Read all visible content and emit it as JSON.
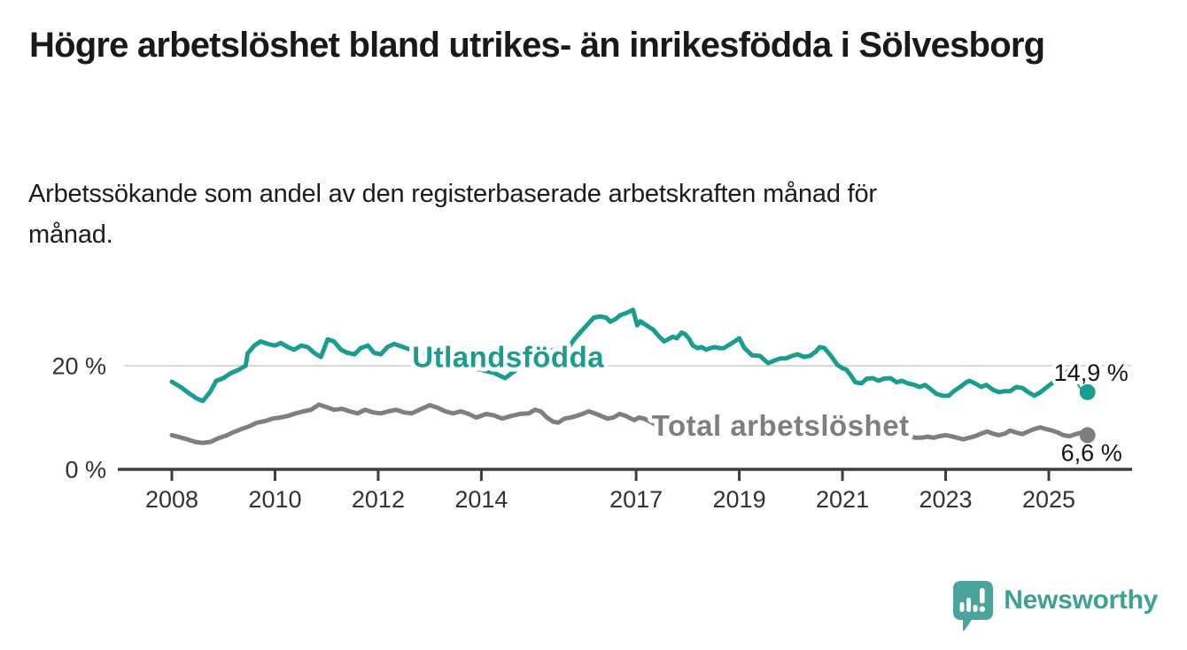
{
  "header": {
    "title": "Högre arbetslöshet bland utrikes- än inrikesfödda i Sölvesborg",
    "subtitle": "Arbetssökande som andel av den registerbaserade arbetskraften månad för månad."
  },
  "footer": {
    "brand": "Newsworthy"
  },
  "chart_data": {
    "type": "line",
    "title": "Högre arbetslöshet bland utrikes- än inrikesfödda i Sölvesborg",
    "subtitle": "Arbetssökande som andel av den registerbaserade arbetskraften månad för månad.",
    "xlabel": "",
    "ylabel": "",
    "ylim": [
      0,
      40
    ],
    "xlim": [
      2007,
      2026.5
    ],
    "legend_position": "inline-labels",
    "y_axis": {
      "ticks": [
        {
          "value": 20,
          "label": "20 %",
          "gridline": true
        },
        {
          "value": 0,
          "label": "0 %",
          "gridline": false
        }
      ]
    },
    "x_axis": {
      "ticks": [
        {
          "value": 2008,
          "label": "2008"
        },
        {
          "value": 2010,
          "label": "2010"
        },
        {
          "value": 2012,
          "label": "2012"
        },
        {
          "value": 2014,
          "label": "2014"
        },
        {
          "value": 2017,
          "label": "2017"
        },
        {
          "value": 2019,
          "label": "2019"
        },
        {
          "value": 2021,
          "label": "2021"
        },
        {
          "value": 2023,
          "label": "2023"
        },
        {
          "value": 2025,
          "label": "2025"
        }
      ]
    },
    "series": [
      {
        "name": "Utlandsfödda",
        "color": "#1a9c8e",
        "end_value": 14.9,
        "end_label": {
          "text": "14,9 %",
          "dx": -38,
          "dy": -13
        },
        "inline_label": {
          "text": "Utlandsfödda",
          "t": 2014.52,
          "v": 21.6
        },
        "segments": [
          [
            [
              2008.0,
              16.9
            ],
            [
              2008.17,
              15.9
            ],
            [
              2008.3,
              14.9
            ],
            [
              2008.48,
              13.7
            ],
            [
              2008.6,
              13.2
            ],
            [
              2008.74,
              14.9
            ],
            [
              2008.86,
              17.1
            ],
            [
              2009.0,
              17.6
            ],
            [
              2009.13,
              18.5
            ],
            [
              2009.29,
              19.2
            ],
            [
              2009.43,
              20.0
            ],
            [
              2009.47,
              22.4
            ],
            [
              2009.6,
              23.9
            ],
            [
              2009.72,
              24.7
            ],
            [
              2009.86,
              24.2
            ],
            [
              2010.0,
              23.9
            ],
            [
              2010.11,
              24.4
            ],
            [
              2010.25,
              23.6
            ],
            [
              2010.37,
              23.1
            ],
            [
              2010.51,
              23.9
            ],
            [
              2010.63,
              23.6
            ],
            [
              2010.77,
              22.4
            ],
            [
              2010.89,
              21.7
            ],
            [
              2011.02,
              25.1
            ],
            [
              2011.14,
              24.7
            ],
            [
              2011.28,
              23.1
            ],
            [
              2011.4,
              22.5
            ],
            [
              2011.54,
              22.2
            ],
            [
              2011.66,
              23.4
            ],
            [
              2011.8,
              23.9
            ],
            [
              2011.92,
              22.5
            ],
            [
              2012.05,
              22.2
            ],
            [
              2012.18,
              23.6
            ],
            [
              2012.31,
              24.2
            ],
            [
              2012.6,
              23.2
            ],
            [
              2013.0,
              21.9
            ],
            [
              2013.5,
              20.4
            ],
            [
              2014.0,
              19.2
            ],
            [
              2014.25,
              18.6
            ],
            [
              2014.46,
              17.6
            ],
            [
              2014.7,
              19.4
            ],
            [
              2015.0,
              21.8
            ],
            [
              2015.1,
              23.3
            ],
            [
              2015.3,
              22.8
            ],
            [
              2015.55,
              23.4
            ],
            [
              2015.7,
              23.6
            ],
            [
              2015.8,
              25.1
            ],
            [
              2015.95,
              26.8
            ],
            [
              2016.07,
              28.1
            ],
            [
              2016.18,
              29.3
            ],
            [
              2016.3,
              29.5
            ],
            [
              2016.42,
              29.3
            ],
            [
              2016.5,
              28.5
            ],
            [
              2016.6,
              29.0
            ],
            [
              2016.7,
              29.8
            ],
            [
              2016.82,
              30.2
            ],
            [
              2016.94,
              30.8
            ],
            [
              2017.02,
              27.8
            ],
            [
              2017.08,
              28.6
            ],
            [
              2017.2,
              27.8
            ],
            [
              2017.33,
              27.0
            ],
            [
              2017.45,
              25.6
            ],
            [
              2017.54,
              24.7
            ],
            [
              2017.62,
              25.1
            ],
            [
              2017.71,
              25.6
            ],
            [
              2017.79,
              25.3
            ],
            [
              2017.88,
              26.4
            ],
            [
              2017.95,
              26.1
            ],
            [
              2018.02,
              25.3
            ],
            [
              2018.1,
              23.9
            ],
            [
              2018.19,
              23.4
            ],
            [
              2018.27,
              23.6
            ],
            [
              2018.36,
              23.1
            ],
            [
              2018.44,
              23.4
            ],
            [
              2018.53,
              23.6
            ],
            [
              2018.61,
              23.4
            ],
            [
              2018.7,
              23.4
            ],
            [
              2018.85,
              24.3
            ],
            [
              2019.0,
              25.3
            ],
            [
              2019.1,
              23.4
            ],
            [
              2019.25,
              22.0
            ],
            [
              2019.4,
              21.9
            ],
            [
              2019.56,
              20.5
            ],
            [
              2019.68,
              21.0
            ],
            [
              2019.79,
              21.4
            ],
            [
              2019.9,
              21.4
            ],
            [
              2020.02,
              21.9
            ],
            [
              2020.13,
              22.2
            ],
            [
              2020.25,
              21.7
            ],
            [
              2020.37,
              21.9
            ],
            [
              2020.48,
              22.7
            ],
            [
              2020.56,
              23.6
            ],
            [
              2020.65,
              23.4
            ],
            [
              2020.77,
              22.0
            ],
            [
              2020.9,
              20.2
            ],
            [
              2021.0,
              19.5
            ],
            [
              2021.07,
              19.3
            ],
            [
              2021.15,
              18.3
            ],
            [
              2021.25,
              16.8
            ],
            [
              2021.37,
              16.6
            ],
            [
              2021.47,
              17.5
            ],
            [
              2021.59,
              17.6
            ],
            [
              2021.7,
              17.1
            ],
            [
              2021.8,
              17.5
            ],
            [
              2021.93,
              17.6
            ],
            [
              2022.05,
              16.8
            ],
            [
              2022.15,
              17.1
            ],
            [
              2022.27,
              16.6
            ],
            [
              2022.39,
              16.3
            ],
            [
              2022.5,
              15.9
            ],
            [
              2022.6,
              16.3
            ],
            [
              2022.72,
              15.4
            ],
            [
              2022.82,
              14.6
            ],
            [
              2022.94,
              14.2
            ],
            [
              2023.06,
              14.2
            ],
            [
              2023.16,
              15.1
            ],
            [
              2023.28,
              15.9
            ],
            [
              2023.4,
              16.8
            ],
            [
              2023.46,
              17.1
            ],
            [
              2023.57,
              16.6
            ],
            [
              2023.69,
              15.9
            ],
            [
              2023.79,
              16.3
            ],
            [
              2023.91,
              15.4
            ],
            [
              2024.03,
              14.9
            ],
            [
              2024.15,
              15.1
            ],
            [
              2024.25,
              15.1
            ],
            [
              2024.37,
              15.9
            ],
            [
              2024.49,
              15.7
            ],
            [
              2024.6,
              14.9
            ],
            [
              2024.72,
              14.2
            ],
            [
              2024.84,
              14.9
            ],
            [
              2024.94,
              15.7
            ],
            [
              2025.06,
              16.6
            ],
            [
              2025.18,
              17.5
            ],
            [
              2025.28,
              18.3
            ],
            [
              2025.4,
              19.1
            ],
            [
              2025.49,
              18.5
            ],
            [
              2025.58,
              16.6
            ],
            [
              2025.63,
              15.9
            ],
            [
              2025.7,
              15.4
            ],
            [
              2025.75,
              14.9
            ]
          ]
        ]
      },
      {
        "name": "Total arbetslöshet",
        "color": "#7f7f7f",
        "end_value": 6.6,
        "end_label": {
          "text": "6,6 %",
          "dx": -30,
          "dy": 29
        },
        "inline_label": {
          "text": "Total arbetslöshet",
          "t": 2019.8,
          "v": 8.4
        },
        "segments": [
          [
            [
              2008.0,
              6.6
            ],
            [
              2008.15,
              6.2
            ],
            [
              2008.3,
              5.8
            ],
            [
              2008.45,
              5.3
            ],
            [
              2008.6,
              5.1
            ],
            [
              2008.75,
              5.3
            ],
            [
              2008.9,
              6.0
            ],
            [
              2009.05,
              6.5
            ],
            [
              2009.2,
              7.2
            ],
            [
              2009.35,
              7.8
            ],
            [
              2009.5,
              8.3
            ],
            [
              2009.65,
              9.0
            ],
            [
              2009.8,
              9.3
            ],
            [
              2009.95,
              9.8
            ],
            [
              2010.1,
              10.0
            ],
            [
              2010.25,
              10.3
            ],
            [
              2010.4,
              10.8
            ],
            [
              2010.55,
              11.2
            ],
            [
              2010.7,
              11.5
            ],
            [
              2010.85,
              12.5
            ],
            [
              2011.0,
              12.0
            ],
            [
              2011.15,
              11.5
            ],
            [
              2011.3,
              11.7
            ],
            [
              2011.45,
              11.2
            ],
            [
              2011.6,
              10.8
            ],
            [
              2011.75,
              11.5
            ],
            [
              2011.9,
              11.0
            ],
            [
              2012.05,
              10.8
            ],
            [
              2012.2,
              11.2
            ],
            [
              2012.35,
              11.5
            ],
            [
              2012.5,
              11.0
            ],
            [
              2012.65,
              10.8
            ],
            [
              2012.8,
              11.5
            ],
            [
              2013.0,
              12.4
            ],
            [
              2013.15,
              11.9
            ],
            [
              2013.3,
              11.2
            ],
            [
              2013.45,
              10.8
            ],
            [
              2013.6,
              11.2
            ],
            [
              2013.75,
              10.7
            ],
            [
              2013.9,
              10.0
            ],
            [
              2014.1,
              10.7
            ],
            [
              2014.25,
              10.4
            ],
            [
              2014.4,
              9.8
            ],
            [
              2014.58,
              10.3
            ],
            [
              2014.75,
              10.7
            ],
            [
              2014.92,
              10.8
            ],
            [
              2015.04,
              11.5
            ],
            [
              2015.15,
              11.2
            ],
            [
              2015.27,
              10.0
            ],
            [
              2015.39,
              9.2
            ],
            [
              2015.49,
              9.0
            ],
            [
              2015.61,
              9.8
            ],
            [
              2015.73,
              10.0
            ],
            [
              2015.84,
              10.3
            ],
            [
              2015.96,
              10.7
            ],
            [
              2016.08,
              11.2
            ],
            [
              2016.2,
              10.8
            ],
            [
              2016.32,
              10.3
            ],
            [
              2016.44,
              9.8
            ],
            [
              2016.56,
              10.0
            ],
            [
              2016.68,
              10.7
            ],
            [
              2016.8,
              10.3
            ],
            [
              2016.9,
              9.8
            ],
            [
              2016.97,
              9.5
            ],
            [
              2017.05,
              10.0
            ],
            [
              2017.15,
              9.8
            ],
            [
              2017.28,
              9.2
            ],
            [
              2017.38,
              8.6
            ],
            [
              2017.5,
              8.1
            ]
          ],
          [
            [
              2022.2,
              6.5
            ],
            [
              2022.3,
              6.4
            ],
            [
              2022.42,
              6.1
            ],
            [
              2022.53,
              6.1
            ],
            [
              2022.65,
              6.3
            ],
            [
              2022.77,
              6.1
            ],
            [
              2022.88,
              6.4
            ],
            [
              2023.0,
              6.6
            ],
            [
              2023.11,
              6.4
            ],
            [
              2023.22,
              6.1
            ],
            [
              2023.34,
              5.8
            ],
            [
              2023.46,
              6.1
            ],
            [
              2023.57,
              6.4
            ],
            [
              2023.69,
              6.9
            ],
            [
              2023.81,
              7.3
            ],
            [
              2023.91,
              6.9
            ],
            [
              2024.03,
              6.6
            ],
            [
              2024.15,
              6.9
            ],
            [
              2024.25,
              7.5
            ],
            [
              2024.37,
              7.1
            ],
            [
              2024.49,
              6.8
            ],
            [
              2024.6,
              7.3
            ],
            [
              2024.72,
              7.8
            ],
            [
              2024.84,
              8.1
            ],
            [
              2024.94,
              7.8
            ],
            [
              2025.06,
              7.5
            ],
            [
              2025.18,
              7.1
            ],
            [
              2025.28,
              6.6
            ],
            [
              2025.4,
              6.4
            ],
            [
              2025.52,
              6.8
            ],
            [
              2025.63,
              7.1
            ],
            [
              2025.7,
              6.9
            ],
            [
              2025.75,
              6.6
            ]
          ]
        ]
      }
    ]
  }
}
